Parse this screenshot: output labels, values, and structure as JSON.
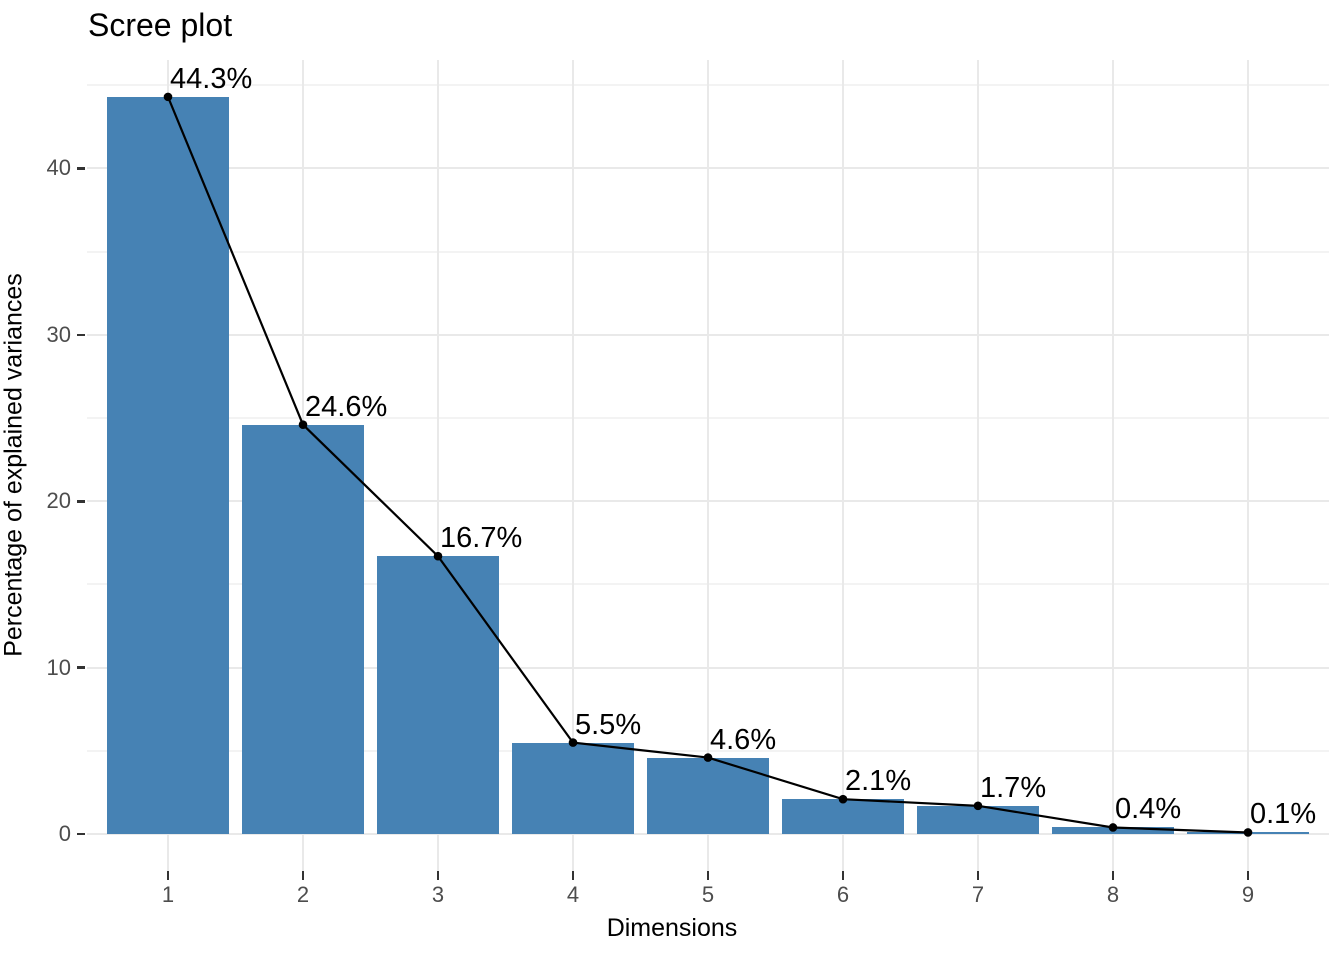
{
  "chart_data": {
    "type": "bar",
    "subtype": "bar-with-line-overlay",
    "title": "Scree plot",
    "xlabel": "Dimensions",
    "ylabel": "Percentage of explained variances",
    "categories": [
      "1",
      "2",
      "3",
      "4",
      "5",
      "6",
      "7",
      "8",
      "9"
    ],
    "values": [
      44.3,
      24.6,
      16.7,
      5.5,
      4.6,
      2.1,
      1.7,
      0.4,
      0.1
    ],
    "point_labels": [
      "44.3%",
      "24.6%",
      "16.7%",
      "5.5%",
      "4.6%",
      "2.1%",
      "1.7%",
      "0.4%",
      "0.1%"
    ],
    "y_ticks": [
      0,
      10,
      20,
      30,
      40
    ],
    "y_minor_ticks": [
      5,
      15,
      25,
      35,
      45
    ],
    "ylim": [
      -2.215,
      46.515
    ],
    "bar_width_fraction": 0.9,
    "x_expansion": 0.6,
    "grid": "major-and-minor",
    "legend": "none",
    "colors": {
      "bar_fill": "#4682B4",
      "line": "#000000",
      "point": "#000000",
      "value_label": "#000000",
      "tick_label": "#4d4d4d",
      "tick_mark": "#333333",
      "grid_major": "#e9e9e9",
      "grid_minor": "#f3f3f3",
      "title": "#000000",
      "background": "#ffffff"
    }
  }
}
